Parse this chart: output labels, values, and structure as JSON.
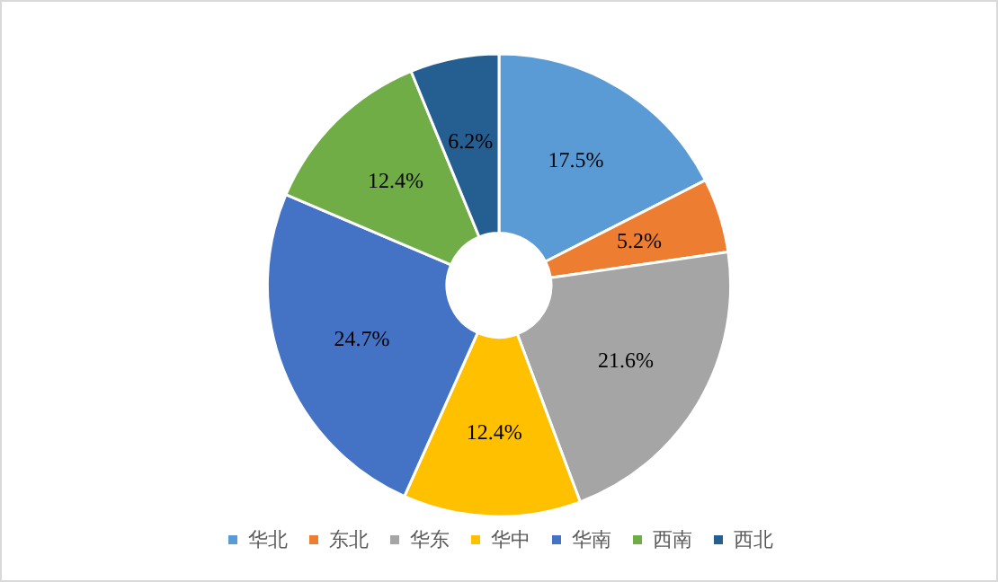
{
  "chart_data": {
    "type": "donut",
    "categories": [
      "华北",
      "东北",
      "华东",
      "华中",
      "华南",
      "西南",
      "西北"
    ],
    "values": [
      17.5,
      5.2,
      21.6,
      12.4,
      24.7,
      12.4,
      6.2
    ],
    "value_labels": [
      "17.5%",
      "5.2%",
      "21.6%",
      "12.4%",
      "24.7%",
      "12.4%",
      "6.2%"
    ],
    "colors": [
      "#5b9bd5",
      "#ed7d31",
      "#a5a5a5",
      "#ffc000",
      "#4472c4",
      "#70ad47",
      "#255e91"
    ],
    "legend": "bottom"
  }
}
